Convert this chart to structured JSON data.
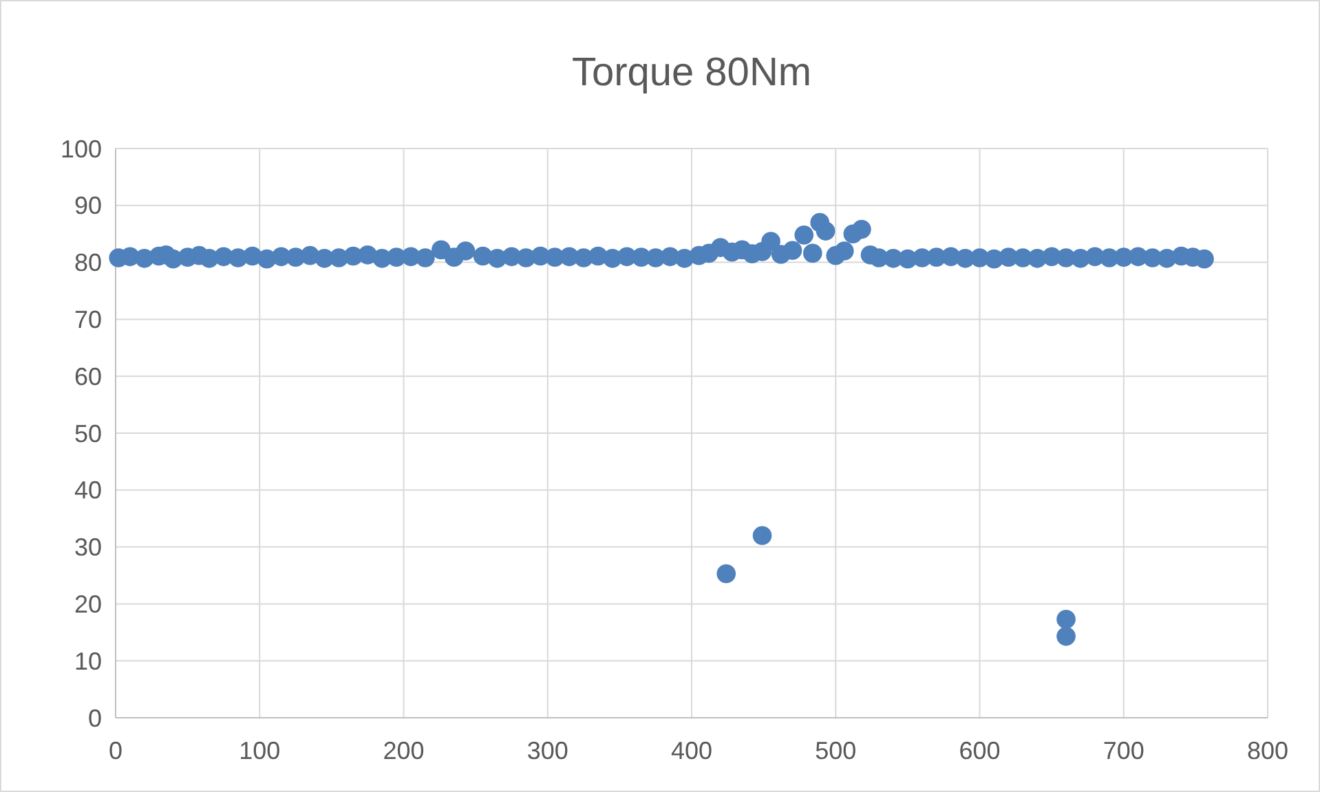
{
  "chart_data": {
    "type": "scatter",
    "title": "Torque 80Nm",
    "xlim": [
      0,
      800
    ],
    "xticks": [
      0,
      100,
      200,
      300,
      400,
      500,
      600,
      700,
      800
    ],
    "ylim": [
      0,
      100
    ],
    "yticks": [
      0,
      10,
      20,
      30,
      40,
      50,
      60,
      70,
      80,
      90,
      100
    ],
    "grid": true,
    "marker": "circle",
    "series": [
      {
        "color": "#4f81bd",
        "x": [
          2,
          10,
          20,
          30,
          35,
          40,
          50,
          58,
          65,
          75,
          85,
          95,
          105,
          115,
          125,
          135,
          145,
          155,
          165,
          175,
          185,
          195,
          205,
          215,
          226,
          235,
          243,
          255,
          265,
          275,
          285,
          295,
          305,
          315,
          325,
          335,
          345,
          355,
          365,
          375,
          385,
          395,
          405,
          412,
          420,
          428,
          435,
          442,
          449,
          455,
          462,
          470,
          478,
          484,
          489,
          493,
          500,
          506,
          512,
          518,
          524,
          530,
          540,
          550,
          560,
          570,
          580,
          590,
          600,
          610,
          620,
          630,
          640,
          650,
          660,
          660,
          670,
          680,
          690,
          700,
          710,
          720,
          730,
          740,
          748,
          756,
          424,
          660,
          449
        ],
        "values": [
          80.8,
          81,
          80.7,
          81.1,
          81.3,
          80.6,
          80.9,
          81.2,
          80.7,
          81,
          80.8,
          81.1,
          80.6,
          81,
          80.9,
          81.2,
          80.7,
          80.8,
          81.1,
          81.3,
          80.7,
          80.9,
          81,
          80.8,
          82.2,
          80.9,
          82,
          81.1,
          80.7,
          81,
          80.8,
          81.1,
          80.9,
          81,
          80.8,
          81.1,
          80.7,
          81,
          80.9,
          80.8,
          81,
          80.7,
          81.2,
          81.6,
          82.6,
          81.8,
          82.2,
          81.5,
          81.9,
          83.7,
          81.4,
          82.1,
          84.8,
          81.6,
          87,
          85.5,
          81.2,
          82,
          85,
          85.8,
          81.3,
          80.8,
          80.7,
          80.6,
          80.8,
          80.9,
          81,
          80.7,
          80.8,
          80.6,
          80.9,
          80.8,
          80.7,
          81,
          80.8,
          14.3,
          80.7,
          81,
          80.8,
          80.9,
          81,
          80.8,
          80.7,
          81.1,
          80.9,
          80.6,
          25.3,
          17.3,
          32
        ]
      }
    ]
  }
}
